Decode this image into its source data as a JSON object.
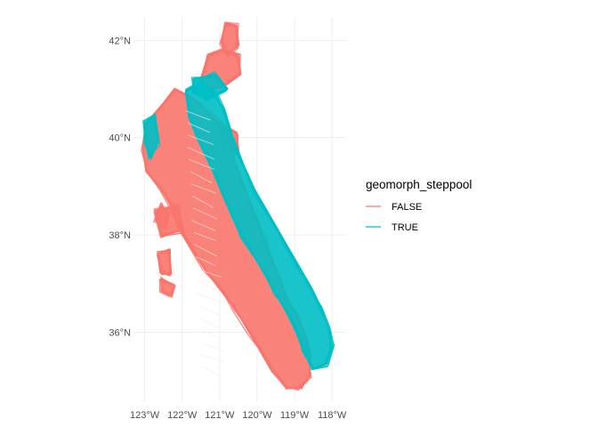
{
  "chart_data": {
    "type": "map",
    "title": "",
    "xlabel": "",
    "ylabel": "",
    "x_ticks": [
      "123°W",
      "122°W",
      "121°W",
      "120°W",
      "119°W",
      "118°W"
    ],
    "y_ticks": [
      "36°N",
      "38°N",
      "40°N",
      "42°N"
    ],
    "x_tick_values": [
      -123,
      -122,
      -121,
      -120,
      -119,
      -118
    ],
    "y_tick_values": [
      36,
      38,
      40,
      42
    ],
    "xlim": [
      -123.3,
      -117.6
    ],
    "ylim": [
      34.6,
      42.5
    ],
    "grid": true,
    "legend": {
      "title": "geomorph_steppool",
      "position": "right",
      "entries": [
        {
          "label": "FALSE",
          "color": "#F8766D"
        },
        {
          "label": "TRUE",
          "color": "#00BFC4"
        }
      ]
    },
    "series": [
      {
        "name": "FALSE",
        "color": "#F8766D",
        "region_outline": [
          [
            -122.95,
            40.3
          ],
          [
            -122.5,
            40.7
          ],
          [
            -122.2,
            41.0
          ],
          [
            -121.7,
            40.8
          ],
          [
            -121.3,
            40.5
          ],
          [
            -120.9,
            40.2
          ],
          [
            -120.7,
            39.9
          ],
          [
            -120.6,
            39.5
          ],
          [
            -120.4,
            39.1
          ],
          [
            -120.2,
            38.7
          ],
          [
            -120.0,
            38.3
          ],
          [
            -119.8,
            37.9
          ],
          [
            -119.6,
            37.5
          ],
          [
            -119.4,
            37.1
          ],
          [
            -119.2,
            36.7
          ],
          [
            -118.9,
            36.3
          ],
          [
            -118.7,
            35.9
          ],
          [
            -118.6,
            35.5
          ],
          [
            -118.6,
            35.1
          ],
          [
            -118.85,
            34.85
          ],
          [
            -119.2,
            34.85
          ],
          [
            -119.6,
            35.2
          ],
          [
            -119.9,
            35.6
          ],
          [
            -120.2,
            36.0
          ],
          [
            -120.6,
            36.5
          ],
          [
            -121.0,
            36.9
          ],
          [
            -121.4,
            37.3
          ],
          [
            -121.8,
            37.8
          ],
          [
            -122.1,
            38.2
          ],
          [
            -122.3,
            38.6
          ],
          [
            -122.6,
            39.0
          ],
          [
            -122.95,
            39.3
          ],
          [
            -123.05,
            39.8
          ]
        ],
        "patches": [
          [
            [
              -121.0,
              40.3
            ],
            [
              -120.55,
              40.1
            ],
            [
              -120.5,
              39.7
            ],
            [
              -120.85,
              39.75
            ]
          ],
          [
            [
              -122.7,
              38.5
            ],
            [
              -122.1,
              38.6
            ],
            [
              -122.0,
              38.1
            ],
            [
              -122.55,
              38.0
            ]
          ],
          [
            [
              -122.65,
              37.6
            ],
            [
              -122.35,
              37.7
            ],
            [
              -122.3,
              37.2
            ],
            [
              -122.55,
              37.2
            ]
          ]
        ]
      },
      {
        "name": "TRUE",
        "color": "#00BFC4",
        "region_outline": [
          [
            -121.9,
            40.95
          ],
          [
            -121.5,
            41.15
          ],
          [
            -121.1,
            40.9
          ],
          [
            -120.9,
            40.55
          ],
          [
            -120.7,
            40.1
          ],
          [
            -120.5,
            39.7
          ],
          [
            -120.3,
            39.3
          ],
          [
            -120.05,
            38.9
          ],
          [
            -119.75,
            38.5
          ],
          [
            -119.45,
            38.1
          ],
          [
            -119.15,
            37.7
          ],
          [
            -118.85,
            37.3
          ],
          [
            -118.55,
            36.9
          ],
          [
            -118.3,
            36.5
          ],
          [
            -118.1,
            36.1
          ],
          [
            -118.0,
            35.7
          ],
          [
            -118.15,
            35.35
          ],
          [
            -118.5,
            35.25
          ],
          [
            -118.75,
            35.6
          ],
          [
            -118.95,
            36.0
          ],
          [
            -119.2,
            36.4
          ],
          [
            -119.5,
            36.8
          ],
          [
            -119.8,
            37.2
          ],
          [
            -120.1,
            37.6
          ],
          [
            -120.4,
            38.0
          ],
          [
            -120.65,
            38.4
          ],
          [
            -120.9,
            38.8
          ],
          [
            -121.1,
            39.2
          ],
          [
            -121.35,
            39.6
          ],
          [
            -121.6,
            40.0
          ],
          [
            -121.8,
            40.4
          ]
        ],
        "patches": [
          [
            [
              -123.0,
              40.3
            ],
            [
              -122.75,
              40.45
            ],
            [
              -122.65,
              39.9
            ],
            [
              -122.85,
              39.6
            ],
            [
              -123.0,
              39.9
            ]
          ],
          [
            [
              -121.7,
              41.2
            ],
            [
              -121.1,
              41.3
            ],
            [
              -120.8,
              41.0
            ],
            [
              -121.3,
              40.8
            ],
            [
              -121.7,
              40.95
            ]
          ]
        ]
      }
    ],
    "extra_false_regions": [
      [
        [
          -121.5,
          41.2
        ],
        [
          -121.3,
          41.7
        ],
        [
          -120.9,
          41.8
        ],
        [
          -120.5,
          41.7
        ],
        [
          -120.45,
          41.3
        ],
        [
          -120.9,
          41.05
        ],
        [
          -121.3,
          41.0
        ]
      ],
      [
        [
          -120.85,
          42.35
        ],
        [
          -120.55,
          42.3
        ],
        [
          -120.5,
          41.9
        ],
        [
          -120.8,
          41.7
        ],
        [
          -120.95,
          41.95
        ]
      ],
      [
        [
          -122.55,
          38.6
        ],
        [
          -122.35,
          38.45
        ],
        [
          -122.45,
          38.15
        ],
        [
          -122.7,
          38.3
        ]
      ],
      [
        [
          -122.55,
          37.1
        ],
        [
          -122.2,
          36.95
        ],
        [
          -122.3,
          36.75
        ],
        [
          -122.55,
          36.85
        ]
      ]
    ]
  }
}
